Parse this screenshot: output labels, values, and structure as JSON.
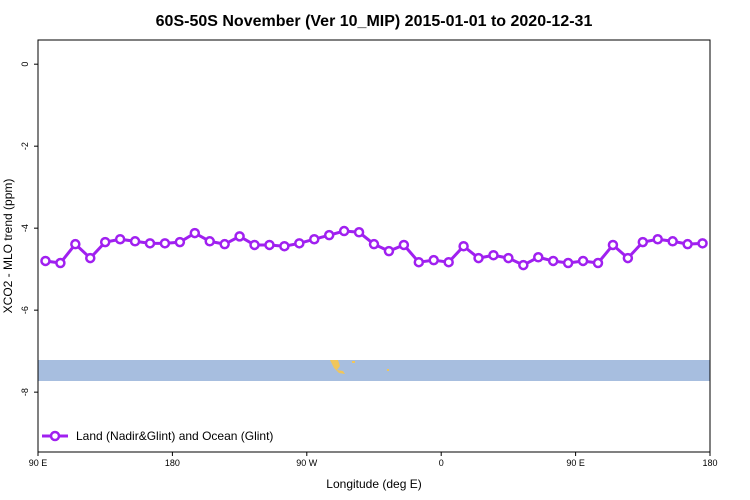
{
  "chart_data": {
    "type": "line",
    "title": "60S-50S November (Ver 10_MIP)   2015-01-01 to 2020-12-31",
    "x_label": "Longitude (deg E)",
    "y_label": "XCO2 - MLO trend (ppm)",
    "x": [
      95,
      105,
      115,
      125,
      135,
      145,
      155,
      165,
      175,
      185,
      195,
      205,
      215,
      225,
      235,
      245,
      255,
      265,
      275,
      285,
      295,
      305,
      315,
      325,
      335,
      345,
      355,
      365,
      375,
      385,
      395,
      405,
      415,
      425,
      435,
      445,
      455,
      465,
      475,
      485,
      495,
      505,
      515,
      525,
      535
    ],
    "series": [
      {
        "name": "Land (Nadir&Glint) and Ocean (Glint)",
        "color": "#a020f0",
        "values": [
          -4.8,
          -4.85,
          -4.39,
          -4.73,
          -4.34,
          -4.27,
          -4.32,
          -4.37,
          -4.37,
          -4.34,
          -4.12,
          -4.32,
          -4.39,
          -4.2,
          -4.41,
          -4.41,
          -4.44,
          -4.37,
          -4.27,
          -4.17,
          -4.07,
          -4.1,
          -4.39,
          -4.56,
          -4.41,
          -4.83,
          -4.78,
          -4.83,
          -4.44,
          -4.73,
          -4.66,
          -4.73,
          -4.9,
          -4.71,
          -4.8,
          -4.85,
          -4.8,
          -4.85,
          -4.41,
          -4.73,
          -4.34,
          -4.27,
          -4.32,
          -4.39,
          -4.37
        ]
      }
    ],
    "xlim": [
      90,
      540
    ],
    "xticks": [
      {
        "value": 90,
        "label": "90 E"
      },
      180,
      {
        "value": 270,
        "label": "90 W"
      },
      {
        "value": 360,
        "label": "0"
      },
      {
        "value": 450,
        "label": "90 E"
      },
      {
        "value": 540,
        "label": "180"
      }
    ],
    "ylim": [
      -9.46,
      0.59
    ],
    "yticks": [
      0,
      -2,
      -4,
      -6,
      -8
    ],
    "legend": "bottom-left"
  }
}
